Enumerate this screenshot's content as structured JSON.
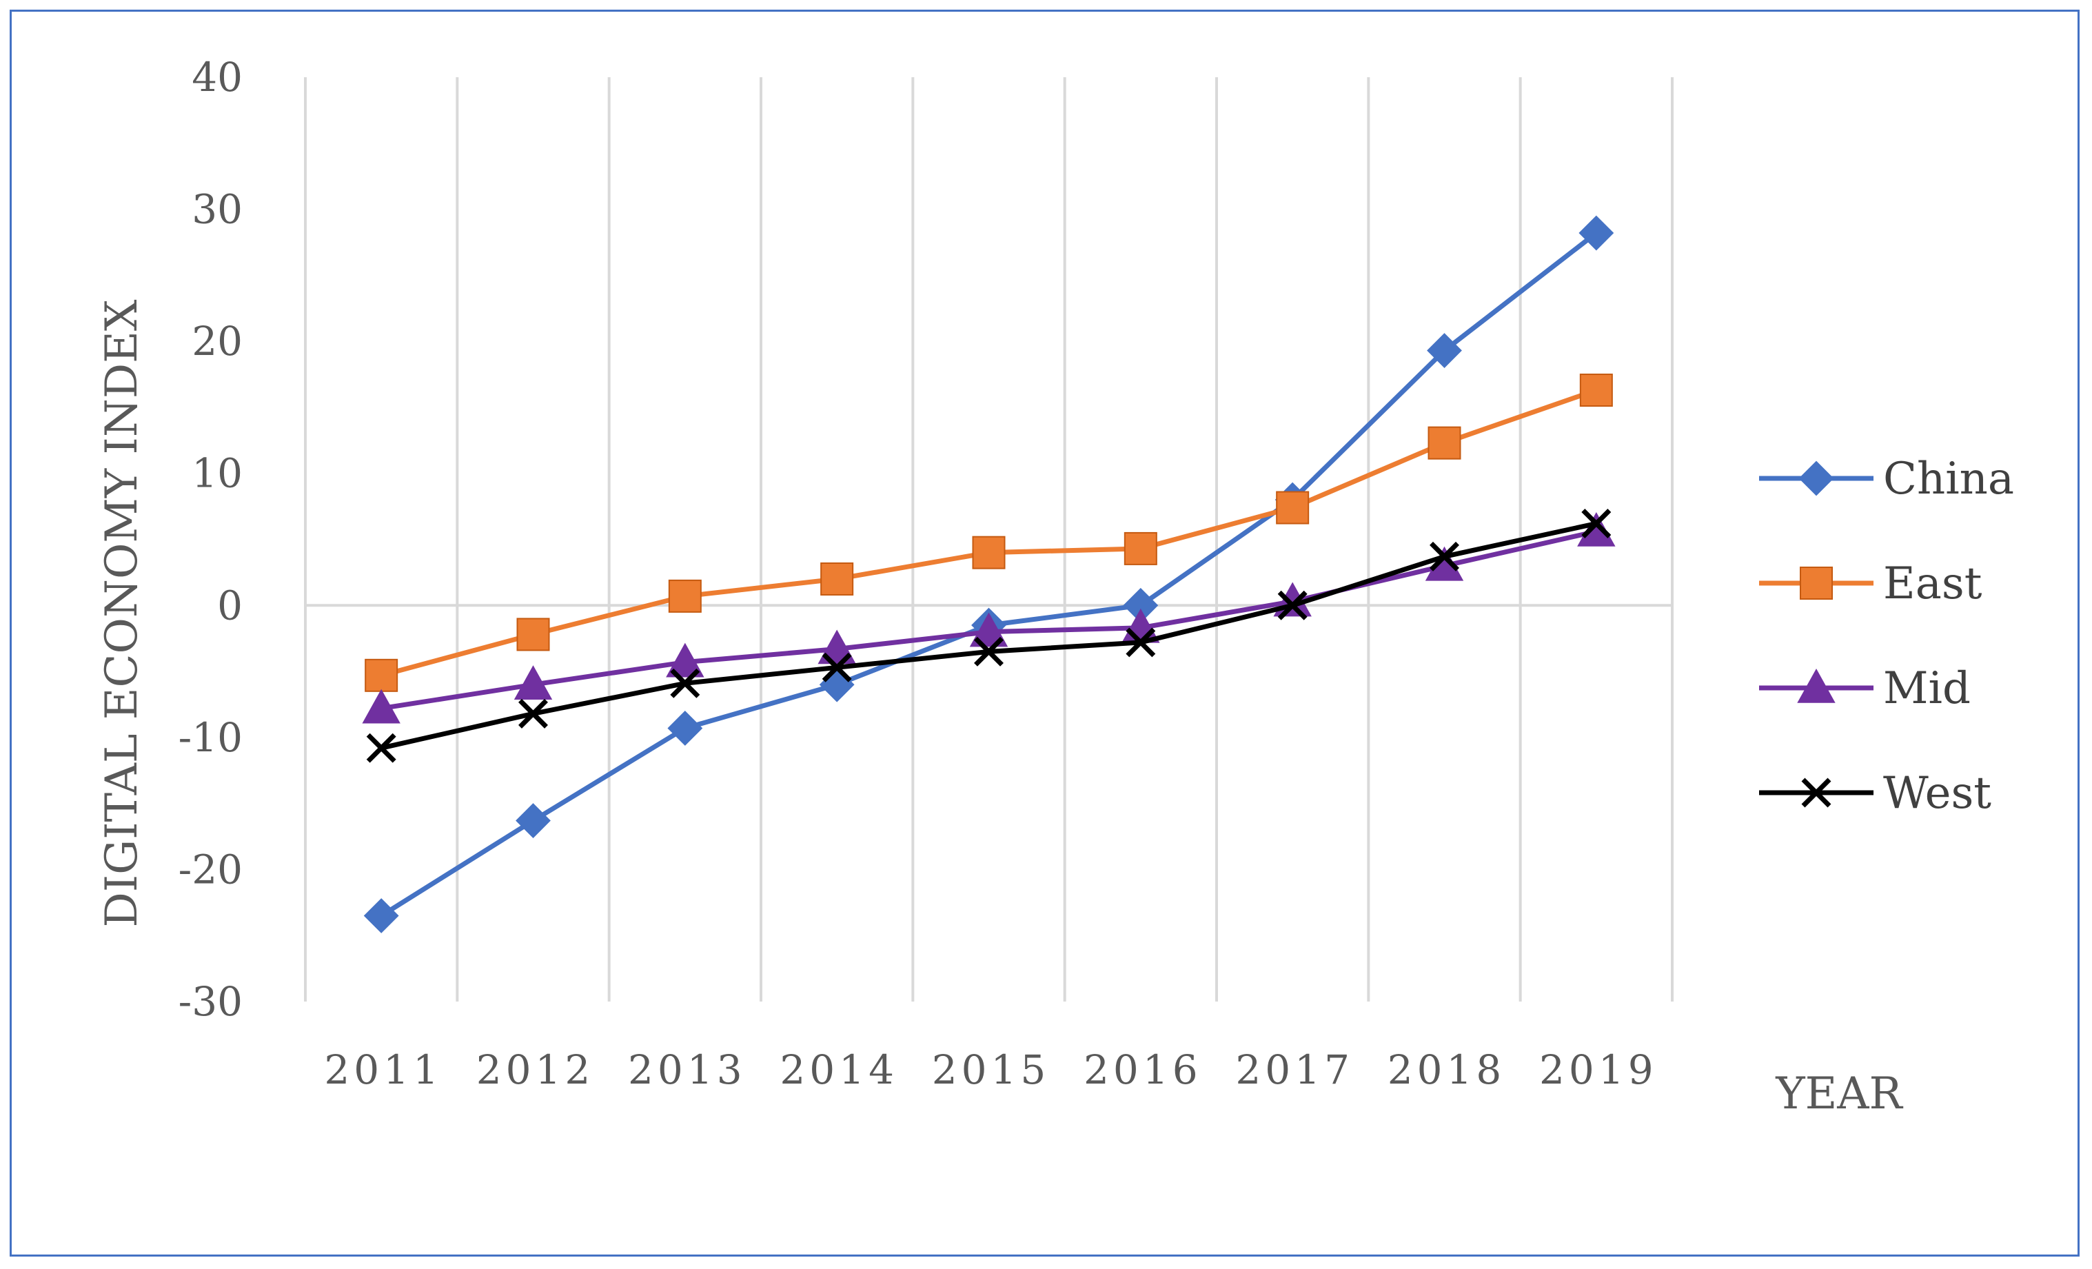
{
  "chart_data": {
    "type": "line",
    "title": "",
    "xlabel": "YEAR",
    "ylabel": "DIGITAL ECONOMY INDEX",
    "ylim": [
      -30,
      40
    ],
    "yticks": [
      40,
      30,
      20,
      10,
      0,
      -10,
      -20,
      -30
    ],
    "grid": "vertical category lines and zero line",
    "legend_position": "right",
    "categories": [
      "2011",
      "2012",
      "2013",
      "2014",
      "2015",
      "2016",
      "2017",
      "2018",
      "2019"
    ],
    "series": [
      {
        "name": "China",
        "color": "#4472c4",
        "marker": "diamond",
        "values": [
          -23.5,
          -16.3,
          -9.3,
          -6.0,
          -1.5,
          0.0,
          8.0,
          19.3,
          28.2
        ]
      },
      {
        "name": "East",
        "color": "#ed7d31",
        "marker": "square",
        "values": [
          -5.3,
          -2.2,
          0.7,
          2.0,
          4.0,
          4.3,
          7.4,
          12.3,
          16.3
        ]
      },
      {
        "name": "Mid",
        "color": "#7030a0",
        "marker": "triangle",
        "values": [
          -7.8,
          -6.0,
          -4.3,
          -3.3,
          -2.0,
          -1.7,
          0.3,
          3.0,
          5.6
        ]
      },
      {
        "name": "West",
        "color": "#000000",
        "marker": "x",
        "values": [
          -10.8,
          -8.2,
          -5.9,
          -4.7,
          -3.5,
          -2.8,
          0.0,
          3.7,
          6.2
        ]
      }
    ]
  }
}
